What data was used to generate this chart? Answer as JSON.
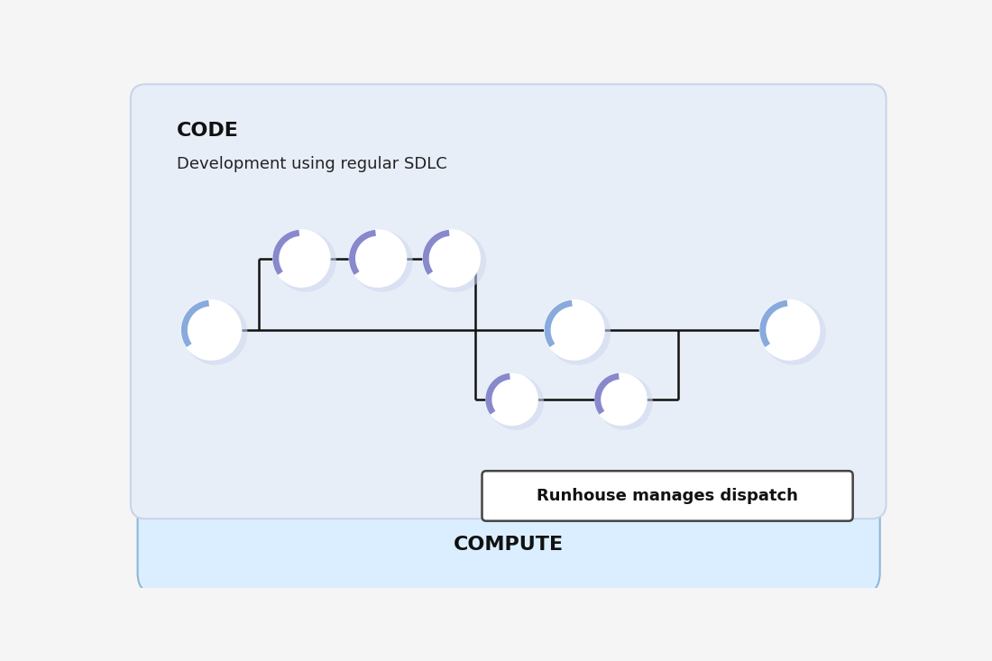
{
  "fig_bg": "#f5f5f5",
  "outer_bg": "#111111",
  "code_box_color": "#e8eef8",
  "code_box_border": "#c8d4e8",
  "compute_box_color": "#daeeff",
  "compute_box_border": "#8ab8d8",
  "circle_face": "#ffffff",
  "circle_shadow": "#cdd8ee",
  "circle_arc_purple": "#8888cc",
  "circle_arc_blue": "#88aadd",
  "line_color": "#111111",
  "dispatch_box_color": "#ffffff",
  "dispatch_box_border": "#444444",
  "code_label": "CODE",
  "code_sublabel": "Development using regular SDLC",
  "compute_label": "COMPUTE",
  "dispatch_label": "Runhouse manages dispatch"
}
